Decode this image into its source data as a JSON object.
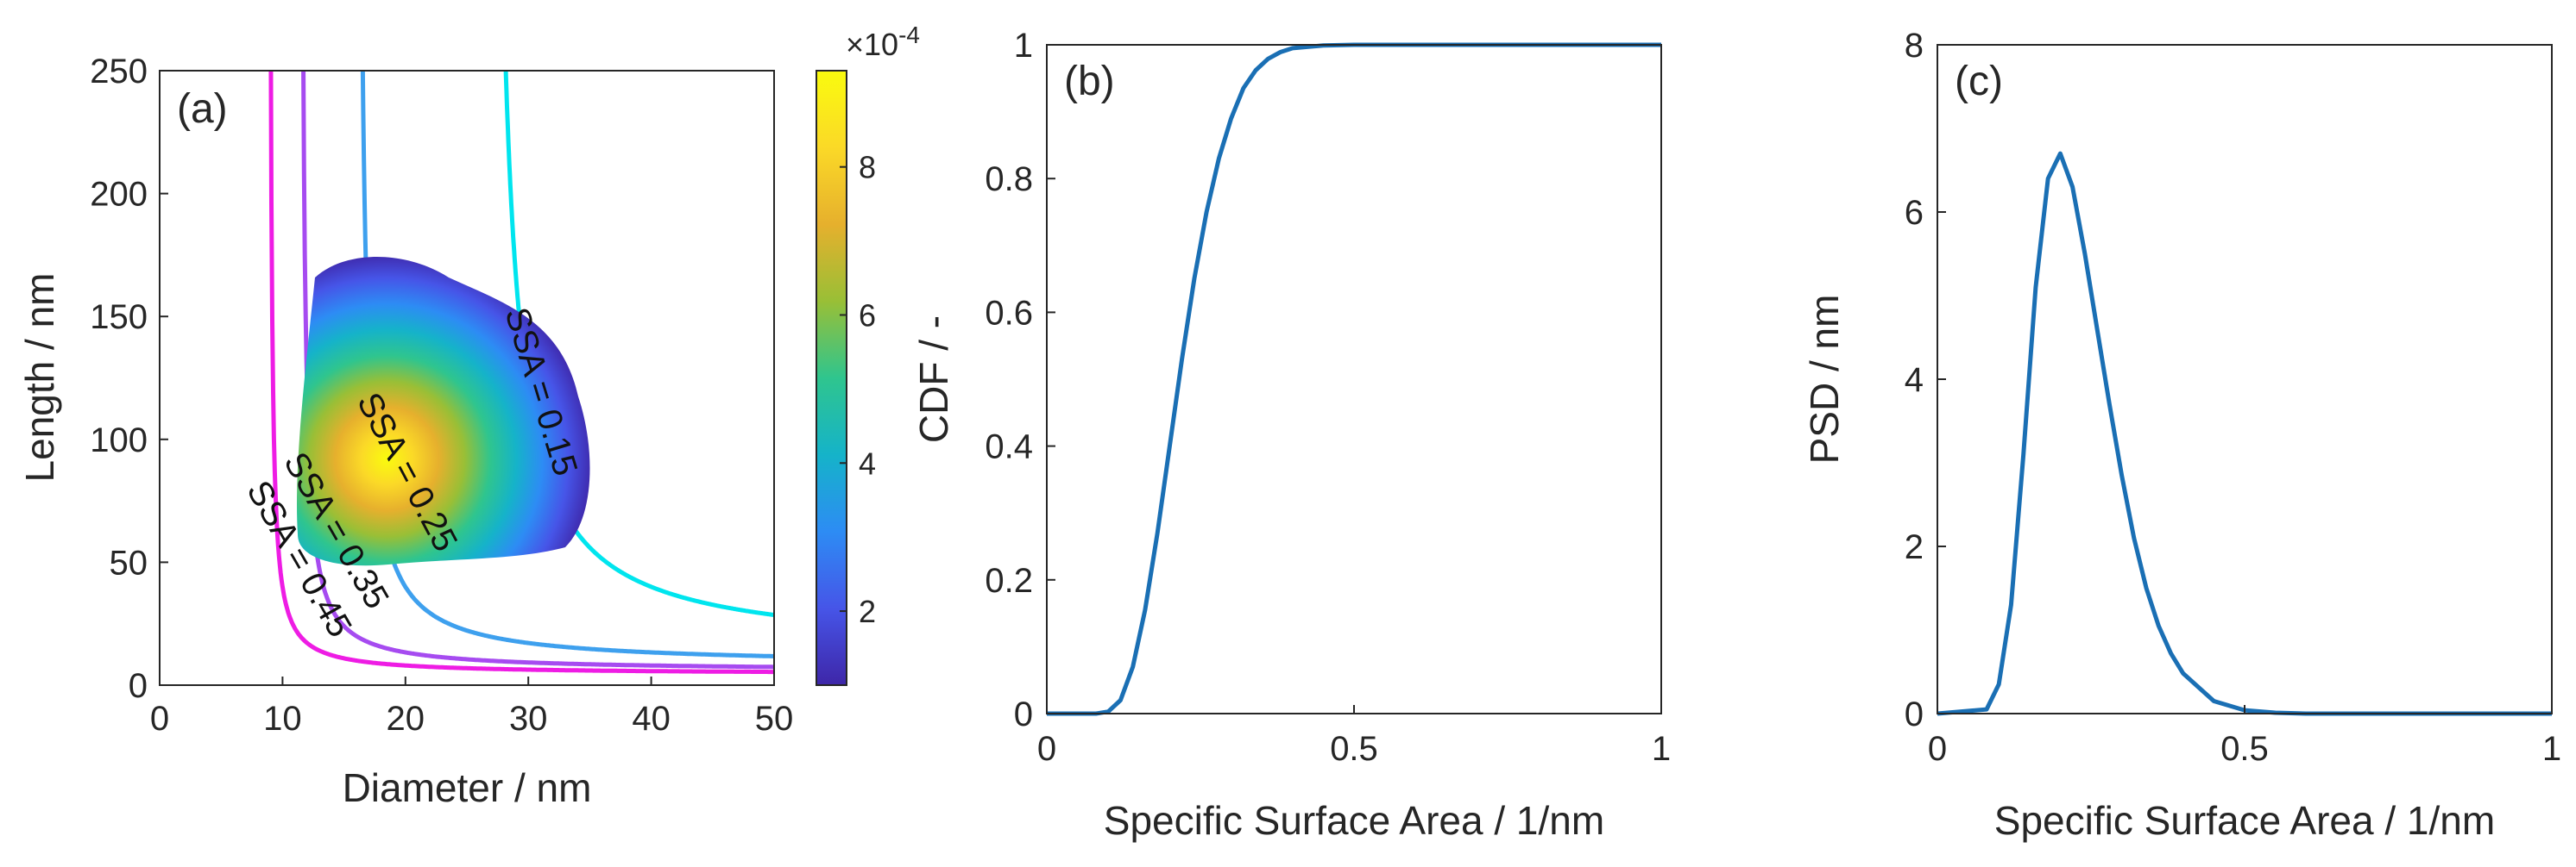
{
  "chart_data": [
    {
      "panel": "(a)",
      "type": "contour",
      "xlabel": "Diameter / nm",
      "ylabel": "Length / nm",
      "xlim": [
        0,
        50
      ],
      "ylim": [
        0,
        250
      ],
      "xticks": [
        0,
        10,
        20,
        30,
        40,
        50
      ],
      "yticks": [
        0,
        50,
        100,
        150,
        200,
        250
      ],
      "colorbar": {
        "range": [
          1,
          9.3
        ],
        "ticks": [
          2,
          4,
          6,
          8
        ],
        "exponent_label": "×10",
        "exponent": "-4",
        "colormap": [
          "#3e26a8",
          "#4655e8",
          "#2d8cf4",
          "#15b3c9",
          "#2fc58e",
          "#99bf36",
          "#e6b02d",
          "#fbd927",
          "#f9fb0e"
        ]
      },
      "density_peak": {
        "diameter": 18.5,
        "length": 92,
        "value": 9.2
      },
      "iso_ssa_lines": [
        {
          "label": "SSA = 0.15",
          "ssa": 0.15,
          "color": "#00e5ee"
        },
        {
          "label": "SSA = 0.25",
          "ssa": 0.25,
          "color": "#3ea0ee"
        },
        {
          "label": "SSA = 0.35",
          "ssa": 0.35,
          "color": "#a64bf0"
        },
        {
          "label": "SSA = 0.45",
          "ssa": 0.45,
          "color": "#ee1ce4"
        }
      ]
    },
    {
      "panel": "(b)",
      "type": "line",
      "xlabel": "Specific Surface Area / 1/nm",
      "ylabel": "CDF / -",
      "xlim": [
        0,
        1
      ],
      "ylim": [
        0,
        1
      ],
      "xticks": [
        "0",
        "0.5",
        "1"
      ],
      "yticks": [
        "0",
        "0.2",
        "0.4",
        "0.6",
        "0.8",
        "1"
      ],
      "series": [
        {
          "name": "CDF",
          "color": "#1a6fb4",
          "x": [
            0,
            0.08,
            0.1,
            0.12,
            0.14,
            0.16,
            0.18,
            0.2,
            0.22,
            0.24,
            0.26,
            0.28,
            0.3,
            0.32,
            0.34,
            0.36,
            0.38,
            0.4,
            0.45,
            0.5,
            0.6,
            0.8,
            1.0
          ],
          "y": [
            0,
            0,
            0.003,
            0.02,
            0.07,
            0.155,
            0.27,
            0.4,
            0.53,
            0.65,
            0.75,
            0.83,
            0.89,
            0.935,
            0.962,
            0.979,
            0.989,
            0.995,
            0.999,
            1,
            1,
            1,
            1
          ]
        }
      ]
    },
    {
      "panel": "(c)",
      "type": "line",
      "xlabel": "Specific Surface Area / 1/nm",
      "ylabel": "PSD / nm",
      "xlim": [
        0,
        1
      ],
      "ylim": [
        0,
        8
      ],
      "xticks": [
        "0",
        "0.5",
        "1"
      ],
      "yticks": [
        "0",
        "2",
        "4",
        "6",
        "8"
      ],
      "series": [
        {
          "name": "PSD",
          "color": "#1a6fb4",
          "x": [
            0,
            0.08,
            0.1,
            0.12,
            0.14,
            0.16,
            0.18,
            0.2,
            0.22,
            0.24,
            0.26,
            0.28,
            0.3,
            0.32,
            0.34,
            0.36,
            0.38,
            0.4,
            0.45,
            0.5,
            0.55,
            0.6,
            0.8,
            1.0
          ],
          "y": [
            0,
            0.05,
            0.35,
            1.3,
            3.1,
            5.1,
            6.4,
            6.7,
            6.3,
            5.5,
            4.6,
            3.7,
            2.85,
            2.1,
            1.5,
            1.05,
            0.72,
            0.48,
            0.15,
            0.04,
            0.01,
            0,
            0,
            0
          ]
        }
      ]
    }
  ]
}
